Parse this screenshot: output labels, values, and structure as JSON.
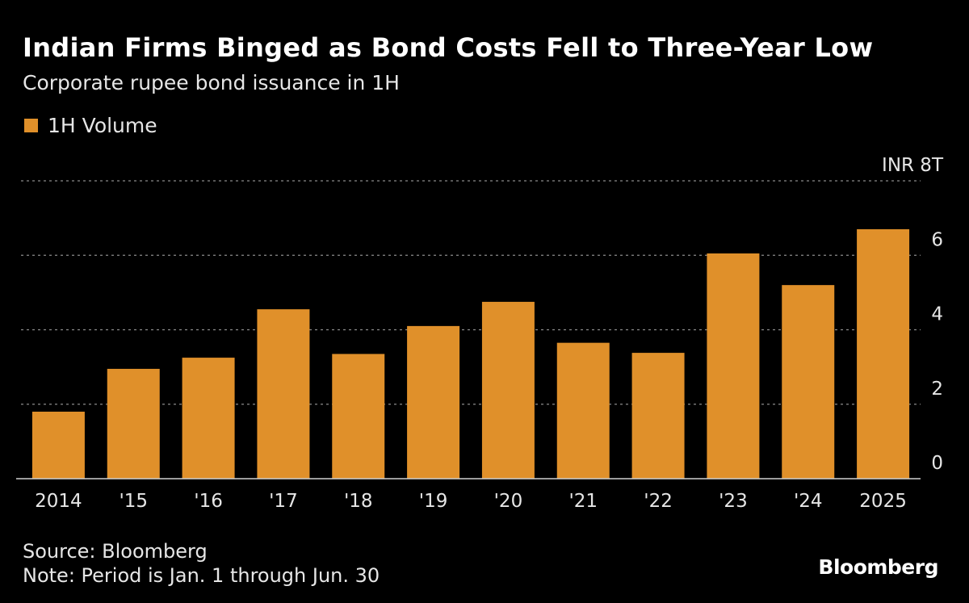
{
  "chart_data": {
    "type": "bar",
    "title": "Indian Firms Binged as Bond Costs Fell to Three-Year Low",
    "subtitle": "Corporate rupee bond issuance in 1H",
    "categories": [
      "2014",
      "'15",
      "'16",
      "'17",
      "'18",
      "'19",
      "'20",
      "'21",
      "'22",
      "'23",
      "'24",
      "2025"
    ],
    "series": [
      {
        "name": "1H Volume",
        "values": [
          1.8,
          2.95,
          3.25,
          4.55,
          3.35,
          4.1,
          4.75,
          3.65,
          3.38,
          6.05,
          5.2,
          6.7
        ]
      }
    ],
    "ylim": [
      0,
      8
    ],
    "yticks": [
      {
        "value": 0,
        "label": "0"
      },
      {
        "value": 2,
        "label": "2"
      },
      {
        "value": 4,
        "label": "4"
      },
      {
        "value": 6,
        "label": "6"
      },
      {
        "value": 8,
        "label": "INR 8T"
      }
    ],
    "grid": true,
    "legend_position": "top-left",
    "bar_color": "#e0902a",
    "background_color": "#000000"
  },
  "footer": {
    "source": "Source: Bloomberg",
    "note": "Note: Period is Jan. 1 through Jun. 30"
  },
  "brand": "Bloomberg"
}
